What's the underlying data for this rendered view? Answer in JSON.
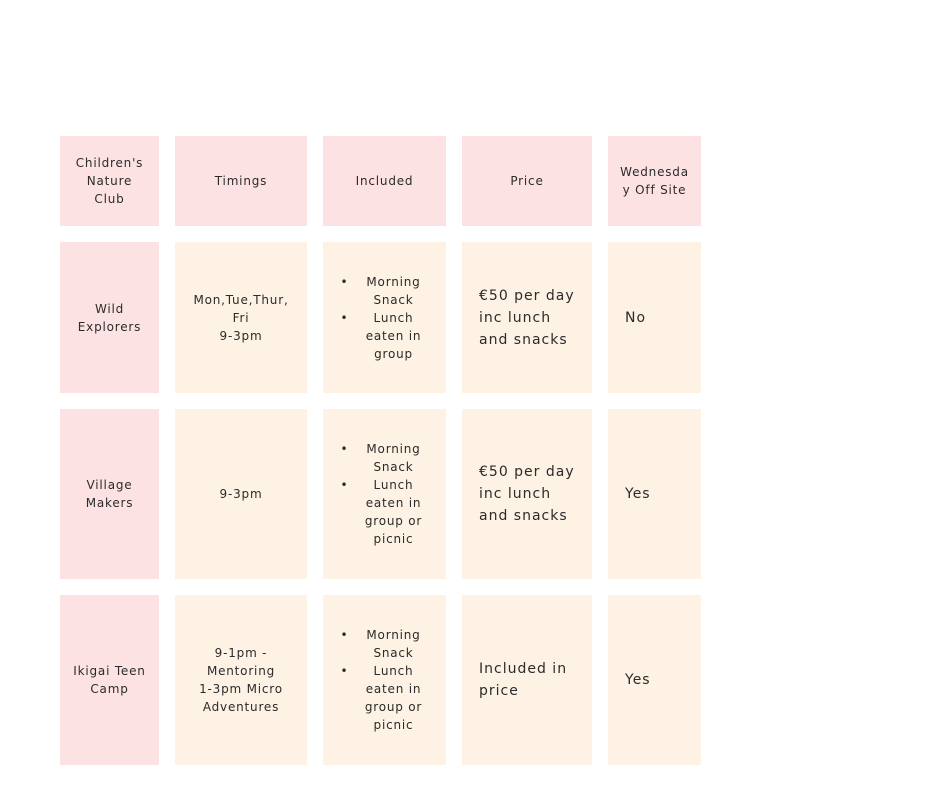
{
  "table": {
    "headers": [
      "Children's Nature Club",
      "Timings",
      "Included",
      "Price",
      "Wednesday Off Site"
    ],
    "rows": [
      {
        "club": "Wild Explorers",
        "timings": "Mon,Tue,Thur,\nFri\n9-3pm",
        "included": [
          "Morning Snack",
          "Lunch eaten in group"
        ],
        "price": "€50 per day inc lunch and snacks",
        "wednesday": "No"
      },
      {
        "club": "Village Makers",
        "timings": "9-3pm",
        "included": [
          "Morning Snack",
          "Lunch eaten in group or picnic"
        ],
        "price": "€50 per day inc lunch and snacks",
        "wednesday": "Yes"
      },
      {
        "club": "Ikigai Teen Camp",
        "timings": "9-1pm -\nMentoring\n1-3pm Micro\nAdventures",
        "included": [
          "Morning Snack",
          "Lunch eaten in group or picnic"
        ],
        "price": "Included in price",
        "wednesday": "Yes"
      }
    ]
  },
  "colors": {
    "header_and_name_cells": "#fde2e4",
    "body_cells": "#fdf2e4"
  }
}
